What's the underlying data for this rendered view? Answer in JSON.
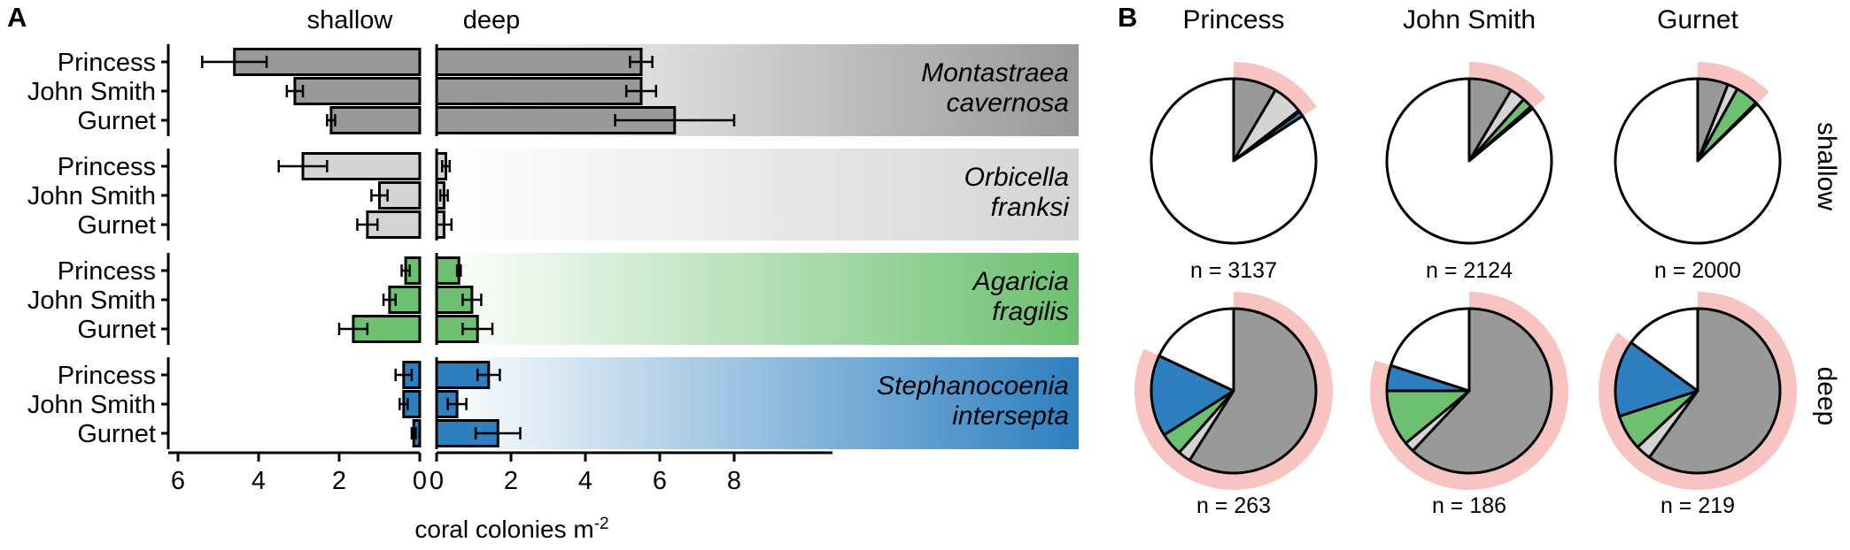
{
  "panel_a": {
    "panel_label": "A",
    "header_shallow": "shallow",
    "header_deep": "deep",
    "xlabel": "coral colonies m",
    "xlabel_exp": "-2",
    "shallow_ticks": [
      "6",
      "4",
      "2",
      "0"
    ],
    "deep_ticks": [
      "0",
      "2",
      "4",
      "6",
      "8"
    ]
  },
  "panel_b": {
    "panel_label": "B",
    "row_labels": [
      "shallow",
      "deep"
    ]
  },
  "colors": {
    "montastraea": "#999999",
    "orbicella": "#d4d4d4",
    "agaricia": "#6cc070",
    "stephanocoenia": "#2d7fc0",
    "other": "#ffffff",
    "highlight": "#f8c4c2",
    "pie_stroke": "#000000"
  },
  "chart_data": [
    {
      "type": "bar",
      "title": "",
      "xlabel": "coral colonies m-2",
      "orientation": "horizontal",
      "categories": [
        "Princess",
        "John Smith",
        "Gurnet"
      ],
      "facets": [
        "shallow",
        "deep"
      ],
      "xlim": {
        "shallow": [
          0,
          6.5
        ],
        "deep": [
          0,
          8.5
        ]
      },
      "series": [
        {
          "name": "Montastraea cavernosa",
          "color_key": "montastraea",
          "shallow": {
            "values": [
              4.6,
              3.1,
              2.2
            ],
            "errors": [
              0.8,
              0.2,
              0.1
            ]
          },
          "deep": {
            "values": [
              5.5,
              5.5,
              6.4
            ],
            "errors": [
              0.3,
              0.4,
              1.6
            ]
          }
        },
        {
          "name": "Orbicella franksi",
          "color_key": "orbicella",
          "shallow": {
            "values": [
              2.9,
              1.0,
              1.3
            ],
            "errors": [
              0.6,
              0.2,
              0.25
            ]
          },
          "deep": {
            "values": [
              0.25,
              0.2,
              0.2
            ],
            "errors": [
              0.1,
              0.1,
              0.2
            ]
          }
        },
        {
          "name": "Agaricia fragilis",
          "color_key": "agaricia",
          "shallow": {
            "values": [
              0.35,
              0.75,
              1.65
            ],
            "errors": [
              0.1,
              0.15,
              0.35
            ]
          },
          "deep": {
            "values": [
              0.6,
              0.95,
              1.1
            ],
            "errors": [
              0.05,
              0.25,
              0.4
            ]
          }
        },
        {
          "name": "Stephanocoenia intersepta",
          "color_key": "stephanocoenia",
          "shallow": {
            "values": [
              0.4,
              0.4,
              0.15
            ],
            "errors": [
              0.2,
              0.1,
              0.05
            ]
          },
          "deep": {
            "values": [
              1.4,
              0.55,
              1.65
            ],
            "errors": [
              0.3,
              0.25,
              0.6
            ]
          }
        }
      ]
    },
    {
      "type": "pie",
      "title": "",
      "categories": [
        "Montastraea cavernosa",
        "Orbicella franksi",
        "Agaricia fragilis",
        "Stephanocoenia intersepta",
        "other"
      ],
      "color_keys": [
        "montastraea",
        "orbicella",
        "agaricia",
        "stephanocoenia",
        "other"
      ],
      "highlight_ring": "fraction of the four focal species",
      "pies": [
        {
          "site": "Princess",
          "depth": "shallow",
          "n_label": "n = 3137",
          "values": [
            0.085,
            0.06,
            0.003,
            0.01,
            0.842
          ]
        },
        {
          "site": "John Smith",
          "depth": "shallow",
          "n_label": "n = 2124",
          "values": [
            0.085,
            0.03,
            0.02,
            0.005,
            0.86
          ]
        },
        {
          "site": "Gurnet",
          "depth": "shallow",
          "n_label": "n = 2000",
          "values": [
            0.06,
            0.02,
            0.045,
            0.003,
            0.872
          ]
        },
        {
          "site": "Princess",
          "depth": "deep",
          "n_label": "n = 263",
          "values": [
            0.59,
            0.025,
            0.045,
            0.16,
            0.18
          ]
        },
        {
          "site": "John Smith",
          "depth": "deep",
          "n_label": "n = 186",
          "values": [
            0.62,
            0.02,
            0.11,
            0.05,
            0.2
          ]
        },
        {
          "site": "Gurnet",
          "depth": "deep",
          "n_label": "n = 219",
          "values": [
            0.6,
            0.03,
            0.07,
            0.15,
            0.15
          ]
        }
      ]
    }
  ]
}
